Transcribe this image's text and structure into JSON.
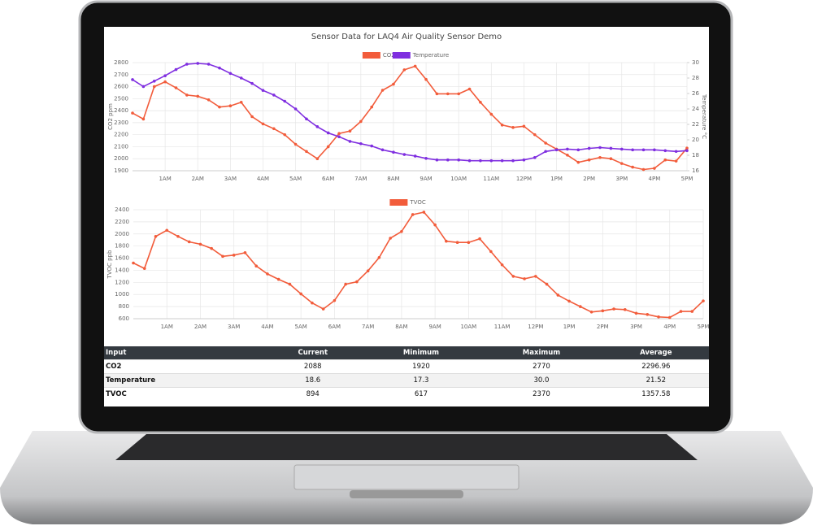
{
  "chart_data": [
    {
      "type": "line",
      "title": "Sensor Data for LAQ4 Air Quality Sensor Demo",
      "categories": [
        null,
        null,
        null,
        "1AM",
        null,
        null,
        "2AM",
        null,
        null,
        "3AM",
        null,
        null,
        "4AM",
        null,
        null,
        "5AM",
        null,
        null,
        "6AM",
        null,
        null,
        "7AM",
        null,
        null,
        "8AM",
        null,
        null,
        "9AM",
        null,
        null,
        "10AM",
        null,
        null,
        "11AM",
        null,
        null,
        "12PM",
        null,
        null,
        "1PM",
        null,
        null,
        "2PM",
        null,
        null,
        "3PM",
        null,
        null,
        "4PM",
        null,
        null,
        "5PM"
      ],
      "series": [
        {
          "name": "CO2",
          "color": "#f25c3b",
          "values": [
            2380,
            2330,
            2600,
            2640,
            2590,
            2530,
            2520,
            2490,
            2430,
            2440,
            2470,
            2350,
            2290,
            2250,
            2200,
            2120,
            2060,
            2000,
            2100,
            2210,
            2230,
            2310,
            2430,
            2570,
            2620,
            2740,
            2770,
            2660,
            2540,
            2540,
            2540,
            2580,
            2470,
            2370,
            2280,
            2260,
            2270,
            2200,
            2130,
            2080,
            2030,
            1970,
            1990,
            2010,
            2000,
            1960,
            1930,
            1910,
            1920,
            1990,
            1980,
            2088
          ]
        },
        {
          "name": "Temperature",
          "color": "#7f2ee0",
          "axis": "y2",
          "values": [
            27.8,
            26.9,
            27.6,
            28.3,
            29.1,
            29.8,
            29.9,
            29.8,
            29.3,
            28.6,
            28.0,
            27.3,
            26.4,
            25.8,
            25.0,
            24.0,
            22.7,
            21.7,
            20.9,
            20.4,
            19.8,
            19.5,
            19.2,
            18.7,
            18.4,
            18.1,
            17.9,
            17.6,
            17.4,
            17.4,
            17.4,
            17.3,
            17.3,
            17.3,
            17.3,
            17.3,
            17.4,
            17.7,
            18.5,
            18.7,
            18.8,
            18.7,
            18.9,
            19.0,
            18.9,
            18.8,
            18.7,
            18.7,
            18.7,
            18.6,
            18.5,
            18.6
          ]
        }
      ],
      "ylabel": "CO2 ppm",
      "y2label": "Temperature °C",
      "ylim": [
        1900,
        2800
      ],
      "yticks": [
        1900,
        2000,
        2100,
        2200,
        2300,
        2400,
        2500,
        2600,
        2700,
        2800
      ],
      "y2lim": [
        16,
        30
      ],
      "y2ticks": [
        16,
        18,
        20,
        22,
        24,
        26,
        28,
        30
      ],
      "grid": true,
      "legend": "top"
    },
    {
      "type": "line",
      "categories": [
        null,
        null,
        null,
        "1AM",
        null,
        null,
        "2AM",
        null,
        null,
        "3AM",
        null,
        null,
        "4AM",
        null,
        null,
        "5AM",
        null,
        null,
        "6AM",
        null,
        null,
        "7AM",
        null,
        null,
        "8AM",
        null,
        null,
        "9AM",
        null,
        null,
        "10AM",
        null,
        null,
        "11AM",
        null,
        null,
        "12PM",
        null,
        null,
        "1PM",
        null,
        null,
        "2PM",
        null,
        null,
        "3PM",
        null,
        null,
        "4PM",
        null,
        null,
        "5PM"
      ],
      "series": [
        {
          "name": "TVOC",
          "color": "#f25c3b",
          "values": [
            1520,
            1430,
            1960,
            2060,
            1960,
            1870,
            1830,
            1760,
            1630,
            1650,
            1690,
            1470,
            1340,
            1250,
            1170,
            1010,
            860,
            760,
            900,
            1170,
            1210,
            1390,
            1610,
            1930,
            2040,
            2320,
            2360,
            2150,
            1880,
            1860,
            1860,
            1920,
            1710,
            1490,
            1300,
            1260,
            1300,
            1170,
            990,
            890,
            800,
            710,
            730,
            760,
            750,
            690,
            670,
            630,
            620,
            720,
            720,
            894
          ]
        }
      ],
      "ylabel": "TVOC ppb",
      "ylim": [
        600,
        2400
      ],
      "yticks": [
        600,
        800,
        1000,
        1200,
        1400,
        1600,
        1800,
        2000,
        2200,
        2400
      ],
      "grid": true,
      "legend": "top"
    }
  ],
  "table": {
    "header": [
      "Input",
      "Current",
      "Minimum",
      "Maximum",
      "Average"
    ],
    "rows": [
      [
        "CO2",
        "2088",
        "1920",
        "2770",
        "2296.96"
      ],
      [
        "Temperature",
        "18.6",
        "17.3",
        "30.0",
        "21.52"
      ],
      [
        "TVOC",
        "894",
        "617",
        "2370",
        "1357.58"
      ]
    ]
  }
}
